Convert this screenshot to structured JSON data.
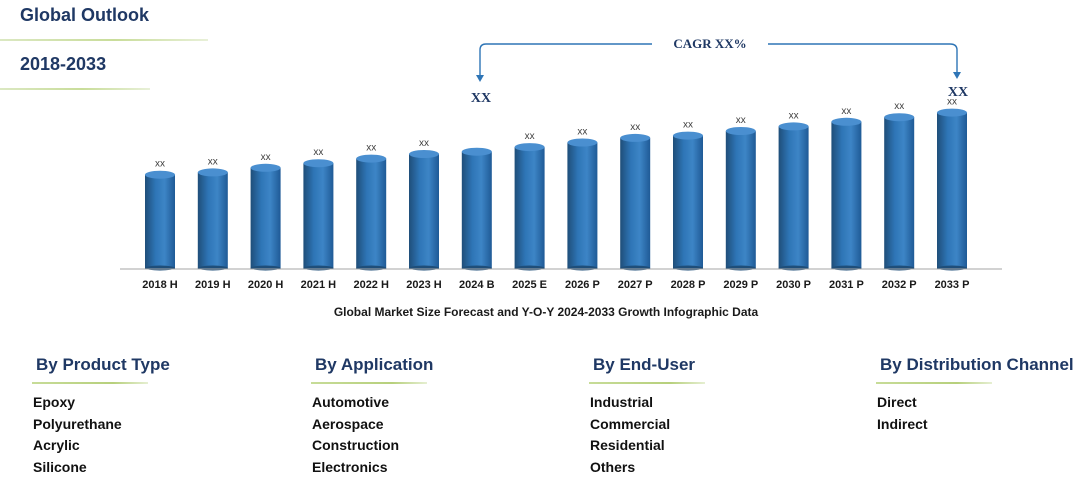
{
  "header": {
    "title": "Global Outlook",
    "period": "2018-2033"
  },
  "chart_data": {
    "type": "bar",
    "categories": [
      "2018 H",
      "2019 H",
      "2020 H",
      "2021 H",
      "2022 H",
      "2023 H",
      "2024 B",
      "2025 E",
      "2026 P",
      "2027 P",
      "2028 P",
      "2029 P",
      "2030 P",
      "2031 P",
      "2032 P",
      "2033 P"
    ],
    "values": [
      41,
      42,
      44,
      46,
      48,
      50,
      51,
      53,
      55,
      57,
      58,
      60,
      62,
      64,
      66,
      68
    ],
    "data_labels": [
      "xx",
      "xx",
      "xx",
      "xx",
      "xx",
      "xx",
      "",
      "xx",
      "xx",
      "xx",
      "xx",
      "xx",
      "xx",
      "xx",
      "xx",
      "xx"
    ],
    "ylim": [
      0,
      100
    ],
    "xlabel": "Global Market Size Forecast and Y-O-Y 2024-2033 Growth Infographic Data",
    "ylabel": "",
    "annotation": {
      "cagr_label": "CAGR XX%",
      "start_label": "XX",
      "end_label": "XX",
      "from": "2024 B",
      "to": "2033 P"
    },
    "colors": {
      "bar_main": "#2e75b6",
      "bar_light": "#5b9bd5",
      "bar_dark": "#1f4e79",
      "axis": "#a6a6a6",
      "annotation": "#1f3864"
    }
  },
  "segments": [
    {
      "title": "By Product Type",
      "items": [
        "Epoxy",
        "Polyurethane",
        "Acrylic",
        "Silicone"
      ]
    },
    {
      "title": "By Application",
      "items": [
        "Automotive",
        "Aerospace",
        "Construction",
        "Electronics"
      ]
    },
    {
      "title": "By End-User",
      "items": [
        "Industrial",
        "Commercial",
        "Residential",
        "Others"
      ]
    },
    {
      "title": "By Distribution Channel",
      "items": [
        "Direct",
        "Indirect"
      ]
    }
  ]
}
